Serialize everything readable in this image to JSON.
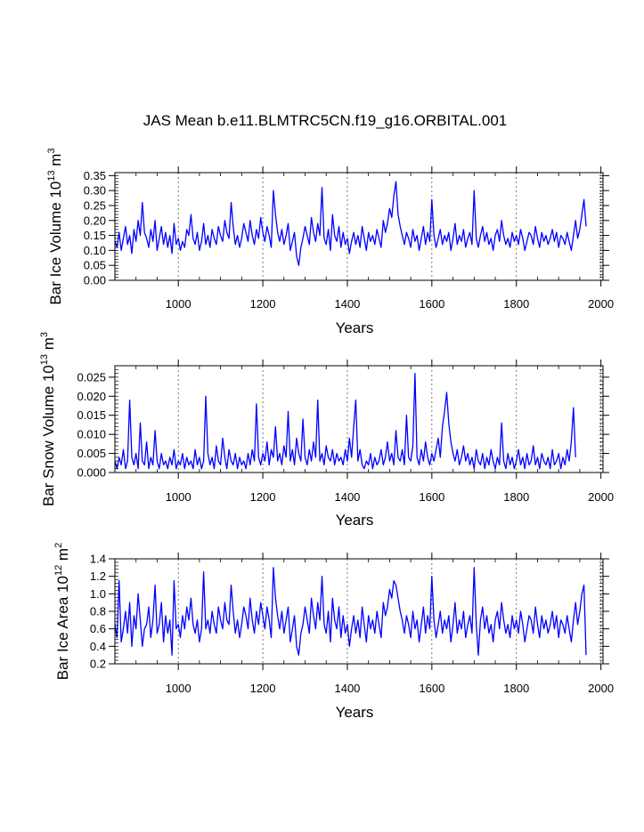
{
  "title": "JAS Mean b.e11.BLMTRC5CN.f19_g16.ORBITAL.001",
  "chart_data": [
    {
      "type": "line",
      "ylabel_main": "Bar Ice Volume 10",
      "ylabel_exp": "13",
      "ylabel_unit": " m",
      "ylabel_unit_exp": "3",
      "xlabel": "Years",
      "xlim": [
        850,
        2005
      ],
      "ylim": [
        0.0,
        0.36
      ],
      "xticks": [
        1000,
        1200,
        1400,
        1600,
        1800,
        2000
      ],
      "yticks": [
        0.0,
        0.05,
        0.1,
        0.15,
        0.2,
        0.25,
        0.3,
        0.35
      ],
      "ytick_labels": [
        "0.00",
        "0.05",
        "0.10",
        "0.15",
        "0.20",
        "0.25",
        "0.30",
        "0.35"
      ],
      "grid_x": [
        1000,
        1200,
        1400,
        1600,
        1800,
        2000
      ],
      "series": [
        {
          "name": "Bar Ice Volume",
          "color": "#0000ff",
          "x_start": 850,
          "x_end": 2005,
          "x_step": 5,
          "values": [
            0.13,
            0.11,
            0.16,
            0.1,
            0.14,
            0.18,
            0.12,
            0.15,
            0.09,
            0.17,
            0.13,
            0.2,
            0.15,
            0.26,
            0.16,
            0.14,
            0.11,
            0.17,
            0.13,
            0.2,
            0.1,
            0.14,
            0.18,
            0.12,
            0.16,
            0.11,
            0.15,
            0.09,
            0.19,
            0.12,
            0.14,
            0.1,
            0.13,
            0.11,
            0.17,
            0.15,
            0.22,
            0.14,
            0.12,
            0.16,
            0.1,
            0.13,
            0.19,
            0.12,
            0.15,
            0.11,
            0.17,
            0.14,
            0.12,
            0.18,
            0.15,
            0.13,
            0.2,
            0.16,
            0.14,
            0.26,
            0.18,
            0.12,
            0.15,
            0.11,
            0.14,
            0.19,
            0.16,
            0.13,
            0.2,
            0.15,
            0.12,
            0.17,
            0.14,
            0.21,
            0.16,
            0.13,
            0.18,
            0.15,
            0.11,
            0.3,
            0.22,
            0.16,
            0.13,
            0.17,
            0.12,
            0.15,
            0.19,
            0.1,
            0.13,
            0.16,
            0.08,
            0.05,
            0.11,
            0.14,
            0.18,
            0.15,
            0.12,
            0.21,
            0.16,
            0.13,
            0.19,
            0.15,
            0.31,
            0.14,
            0.12,
            0.17,
            0.1,
            0.22,
            0.15,
            0.13,
            0.18,
            0.11,
            0.16,
            0.12,
            0.14,
            0.09,
            0.13,
            0.16,
            0.12,
            0.15,
            0.11,
            0.18,
            0.14,
            0.1,
            0.16,
            0.13,
            0.15,
            0.12,
            0.17,
            0.14,
            0.11,
            0.2,
            0.16,
            0.19,
            0.24,
            0.21,
            0.28,
            0.33,
            0.22,
            0.18,
            0.15,
            0.12,
            0.16,
            0.14,
            0.11,
            0.17,
            0.13,
            0.15,
            0.1,
            0.14,
            0.18,
            0.12,
            0.16,
            0.13,
            0.27,
            0.15,
            0.11,
            0.14,
            0.17,
            0.12,
            0.15,
            0.13,
            0.16,
            0.1,
            0.14,
            0.19,
            0.12,
            0.15,
            0.13,
            0.17,
            0.11,
            0.14,
            0.16,
            0.12,
            0.3,
            0.14,
            0.11,
            0.15,
            0.18,
            0.13,
            0.16,
            0.12,
            0.14,
            0.1,
            0.15,
            0.17,
            0.13,
            0.2,
            0.15,
            0.12,
            0.14,
            0.11,
            0.16,
            0.13,
            0.15,
            0.12,
            0.17,
            0.14,
            0.1,
            0.13,
            0.16,
            0.15,
            0.12,
            0.18,
            0.14,
            0.11,
            0.16,
            0.13,
            0.15,
            0.12,
            0.14,
            0.17,
            0.13,
            0.16,
            0.11,
            0.15,
            0.14,
            0.12,
            0.16,
            0.13,
            0.1,
            0.15,
            0.2,
            0.14,
            0.17,
            0.22,
            0.27,
            0.18
          ]
        }
      ]
    },
    {
      "type": "line",
      "ylabel_main": "Bar Snow Volume 10",
      "ylabel_exp": "13",
      "ylabel_unit": " m",
      "ylabel_unit_exp": "3",
      "xlabel": "Years",
      "xlim": [
        850,
        2005
      ],
      "ylim": [
        0.0,
        0.028
      ],
      "xticks": [
        1000,
        1200,
        1400,
        1600,
        1800,
        2000
      ],
      "yticks": [
        0.0,
        0.005,
        0.01,
        0.015,
        0.02,
        0.025
      ],
      "ytick_labels": [
        "0.000",
        "0.005",
        "0.010",
        "0.015",
        "0.020",
        "0.025"
      ],
      "grid_x": [
        1000,
        1200,
        1400,
        1600,
        1800,
        2000
      ],
      "series": [
        {
          "name": "Bar Snow Volume",
          "color": "#0000ff",
          "x_start": 850,
          "x_end": 2005,
          "x_step": 5,
          "values": [
            0.003,
            0.001,
            0.004,
            0.002,
            0.006,
            0.001,
            0.003,
            0.019,
            0.004,
            0.002,
            0.005,
            0.001,
            0.013,
            0.003,
            0.002,
            0.008,
            0.001,
            0.004,
            0.002,
            0.011,
            0.003,
            0.001,
            0.005,
            0.002,
            0.003,
            0.001,
            0.004,
            0.002,
            0.006,
            0.001,
            0.003,
            0.002,
            0.005,
            0.001,
            0.004,
            0.002,
            0.003,
            0.001,
            0.006,
            0.002,
            0.004,
            0.001,
            0.003,
            0.02,
            0.005,
            0.002,
            0.004,
            0.001,
            0.007,
            0.003,
            0.002,
            0.009,
            0.004,
            0.001,
            0.006,
            0.003,
            0.002,
            0.005,
            0.001,
            0.004,
            0.002,
            0.003,
            0.001,
            0.005,
            0.002,
            0.006,
            0.003,
            0.018,
            0.004,
            0.002,
            0.005,
            0.003,
            0.008,
            0.002,
            0.006,
            0.004,
            0.012,
            0.003,
            0.005,
            0.002,
            0.007,
            0.004,
            0.016,
            0.003,
            0.006,
            0.002,
            0.009,
            0.005,
            0.003,
            0.014,
            0.004,
            0.002,
            0.006,
            0.003,
            0.008,
            0.004,
            0.019,
            0.003,
            0.005,
            0.002,
            0.007,
            0.004,
            0.003,
            0.006,
            0.002,
            0.005,
            0.003,
            0.004,
            0.002,
            0.006,
            0.003,
            0.009,
            0.004,
            0.012,
            0.019,
            0.003,
            0.006,
            0.002,
            0.001,
            0.003,
            0.002,
            0.005,
            0.001,
            0.004,
            0.002,
            0.003,
            0.006,
            0.002,
            0.004,
            0.008,
            0.003,
            0.005,
            0.002,
            0.011,
            0.004,
            0.003,
            0.006,
            0.002,
            0.015,
            0.004,
            0.003,
            0.007,
            0.026,
            0.004,
            0.002,
            0.006,
            0.003,
            0.008,
            0.004,
            0.002,
            0.005,
            0.003,
            0.006,
            0.009,
            0.004,
            0.012,
            0.016,
            0.021,
            0.013,
            0.008,
            0.005,
            0.003,
            0.006,
            0.002,
            0.004,
            0.007,
            0.003,
            0.005,
            0.002,
            0.004,
            0.001,
            0.006,
            0.003,
            0.002,
            0.005,
            0.001,
            0.004,
            0.002,
            0.006,
            0.003,
            0.001,
            0.004,
            0.002,
            0.013,
            0.003,
            0.001,
            0.005,
            0.002,
            0.004,
            0.001,
            0.003,
            0.006,
            0.002,
            0.004,
            0.001,
            0.005,
            0.002,
            0.003,
            0.007,
            0.002,
            0.004,
            0.001,
            0.005,
            0.003,
            0.002,
            0.004,
            0.001,
            0.006,
            0.002,
            0.003,
            0.005,
            0.001,
            0.004,
            0.002,
            0.006,
            0.003,
            0.008,
            0.017,
            0.004
          ]
        }
      ]
    },
    {
      "type": "line",
      "ylabel_main": "Bar Ice Area 10",
      "ylabel_exp": "12",
      "ylabel_unit": " m",
      "ylabel_unit_exp": "2",
      "xlabel": "Years",
      "xlim": [
        850,
        2005
      ],
      "ylim": [
        0.2,
        1.4
      ],
      "xticks": [
        1000,
        1200,
        1400,
        1600,
        1800,
        2000
      ],
      "yticks": [
        0.2,
        0.4,
        0.6,
        0.8,
        1.0,
        1.2,
        1.4
      ],
      "ytick_labels": [
        "0.2",
        "0.4",
        "0.6",
        "0.8",
        "1.0",
        "1.2",
        "1.4"
      ],
      "grid_x": [
        1000,
        1200,
        1400,
        1600,
        1800,
        2000
      ],
      "series": [
        {
          "name": "Bar Ice Area",
          "color": "#0000ff",
          "x_start": 850,
          "x_end": 2005,
          "x_step": 5,
          "values": [
            0.65,
            0.5,
            1.15,
            0.45,
            0.6,
            0.8,
            0.55,
            0.9,
            0.4,
            0.75,
            0.6,
            1.0,
            0.7,
            0.4,
            0.6,
            0.65,
            0.85,
            0.5,
            0.7,
            1.1,
            0.55,
            0.65,
            0.9,
            0.45,
            0.75,
            0.55,
            0.7,
            0.3,
            1.15,
            0.6,
            0.65,
            0.5,
            0.75,
            0.6,
            0.85,
            0.7,
            0.95,
            0.65,
            0.55,
            0.7,
            0.45,
            0.6,
            1.25,
            0.6,
            0.7,
            0.55,
            0.8,
            0.65,
            0.55,
            0.85,
            0.7,
            0.6,
            0.9,
            0.7,
            0.65,
            1.1,
            0.8,
            0.55,
            0.7,
            0.5,
            0.65,
            0.85,
            0.75,
            0.6,
            0.95,
            0.7,
            0.55,
            0.8,
            0.65,
            0.9,
            0.75,
            0.6,
            0.85,
            0.7,
            0.5,
            1.3,
            0.95,
            0.75,
            0.6,
            0.8,
            0.55,
            0.7,
            0.85,
            0.45,
            0.6,
            0.75,
            0.4,
            0.3,
            0.55,
            0.65,
            0.85,
            0.7,
            0.55,
            0.95,
            0.75,
            0.6,
            0.9,
            0.7,
            1.2,
            0.65,
            0.55,
            0.8,
            0.45,
            0.95,
            0.7,
            0.6,
            0.85,
            0.5,
            0.75,
            0.55,
            0.65,
            0.4,
            0.6,
            0.75,
            0.55,
            0.7,
            0.5,
            0.85,
            0.65,
            0.45,
            0.75,
            0.6,
            0.7,
            0.55,
            0.8,
            0.65,
            0.5,
            0.9,
            0.75,
            0.85,
            1.05,
            0.95,
            1.15,
            1.1,
            0.95,
            0.8,
            0.7,
            0.55,
            0.75,
            0.65,
            0.5,
            0.8,
            0.6,
            0.7,
            0.45,
            0.65,
            0.85,
            0.55,
            0.75,
            0.6,
            1.2,
            0.7,
            0.5,
            0.65,
            0.8,
            0.55,
            0.7,
            0.6,
            0.75,
            0.45,
            0.65,
            0.9,
            0.55,
            0.7,
            0.6,
            0.8,
            0.5,
            0.65,
            0.75,
            0.55,
            1.3,
            0.65,
            0.3,
            0.7,
            0.85,
            0.6,
            0.75,
            0.55,
            0.65,
            0.45,
            0.7,
            0.8,
            0.6,
            0.9,
            0.7,
            0.55,
            0.65,
            0.5,
            0.75,
            0.6,
            0.7,
            0.55,
            0.8,
            0.65,
            0.45,
            0.6,
            0.75,
            0.7,
            0.55,
            0.85,
            0.65,
            0.5,
            0.75,
            0.6,
            0.7,
            0.55,
            0.65,
            0.8,
            0.6,
            0.75,
            0.5,
            0.7,
            0.65,
            0.55,
            0.75,
            0.6,
            0.45,
            0.7,
            0.9,
            0.65,
            0.8,
            1.0,
            1.1,
            0.3
          ]
        }
      ]
    }
  ]
}
